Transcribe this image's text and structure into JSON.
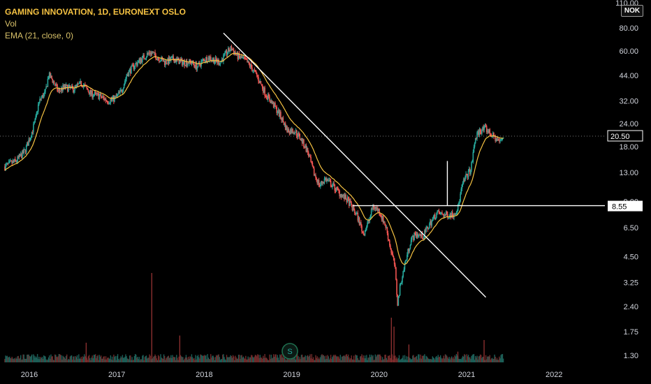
{
  "legend": {
    "title": "GAMING INNOVATION, 1D, EURONEXT OSLO",
    "volume_label": "Vol",
    "ema_label": "EMA (21, close, 0)"
  },
  "currency_badge": "NOK",
  "price_marker_label": "S",
  "colors": {
    "background": "#000000",
    "up": "#26a69a",
    "down": "#ef5350",
    "ema": "#f5c242",
    "trendline": "#ffffff",
    "axis_text": "#d1d4dc"
  },
  "chart_data": {
    "type": "candlestick",
    "scale": "log",
    "title": "GAMING INNOVATION, 1D, EURONEXT OSLO",
    "y_ticks": [
      "1.30",
      "1.75",
      "2.40",
      "3.25",
      "4.50",
      "6.50",
      "9.00",
      "13.00",
      "18.00",
      "24.00",
      "32.00",
      "44.00",
      "60.00",
      "80.00",
      "110.00"
    ],
    "x_ticks": [
      "2016",
      "2017",
      "2018",
      "2019",
      "2020",
      "2021",
      "2022"
    ],
    "x_range": [
      2015.7,
      2022.6
    ],
    "y_range": [
      1.1,
      115
    ],
    "last_price": 20.5,
    "last_price_label": "20.50",
    "horizontal_level": 8.55,
    "horizontal_level_label": "8.55",
    "price_series": [
      [
        2015.72,
        14.0
      ],
      [
        2015.85,
        15.0
      ],
      [
        2015.95,
        17.0
      ],
      [
        2016.02,
        21.0
      ],
      [
        2016.07,
        25.0
      ],
      [
        2016.1,
        30.0
      ],
      [
        2016.13,
        33.0
      ],
      [
        2016.18,
        35.0
      ],
      [
        2016.22,
        44.0
      ],
      [
        2016.26,
        42.0
      ],
      [
        2016.33,
        36.0
      ],
      [
        2016.4,
        38.0
      ],
      [
        2016.5,
        37.0
      ],
      [
        2016.6,
        40.0
      ],
      [
        2016.7,
        35.0
      ],
      [
        2016.8,
        34.0
      ],
      [
        2016.9,
        32.0
      ],
      [
        2016.98,
        33.0
      ],
      [
        2017.05,
        36.0
      ],
      [
        2017.12,
        45.0
      ],
      [
        2017.2,
        50.0
      ],
      [
        2017.3,
        55.0
      ],
      [
        2017.38,
        59.0
      ],
      [
        2017.45,
        56.0
      ],
      [
        2017.55,
        52.0
      ],
      [
        2017.65,
        54.0
      ],
      [
        2017.75,
        52.0
      ],
      [
        2017.85,
        52.0
      ],
      [
        2017.92,
        49.0
      ],
      [
        2018.0,
        54.0
      ],
      [
        2018.07,
        55.0
      ],
      [
        2018.12,
        53.0
      ],
      [
        2018.18,
        52.0
      ],
      [
        2018.25,
        58.0
      ],
      [
        2018.31,
        62.0
      ],
      [
        2018.38,
        56.0
      ],
      [
        2018.45,
        54.0
      ],
      [
        2018.52,
        50.0
      ],
      [
        2018.6,
        44.0
      ],
      [
        2018.7,
        35.0
      ],
      [
        2018.8,
        30.0
      ],
      [
        2018.88,
        26.0
      ],
      [
        2018.95,
        22.0
      ],
      [
        2019.03,
        22.0
      ],
      [
        2019.1,
        20.0
      ],
      [
        2019.18,
        17.0
      ],
      [
        2019.25,
        13.0
      ],
      [
        2019.32,
        11.0
      ],
      [
        2019.38,
        12.0
      ],
      [
        2019.47,
        11.0
      ],
      [
        2019.55,
        10.0
      ],
      [
        2019.65,
        9.0
      ],
      [
        2019.75,
        7.5
      ],
      [
        2019.82,
        6.0
      ],
      [
        2019.88,
        7.0
      ],
      [
        2019.93,
        8.5
      ],
      [
        2020.0,
        8.0
      ],
      [
        2020.08,
        6.5
      ],
      [
        2020.13,
        5.0
      ],
      [
        2020.18,
        4.0
      ],
      [
        2020.21,
        2.5
      ],
      [
        2020.25,
        3.3
      ],
      [
        2020.3,
        4.2
      ],
      [
        2020.36,
        5.5
      ],
      [
        2020.42,
        6.0
      ],
      [
        2020.5,
        5.8
      ],
      [
        2020.58,
        6.8
      ],
      [
        2020.66,
        7.8
      ],
      [
        2020.75,
        7.6
      ],
      [
        2020.85,
        7.7
      ],
      [
        2020.9,
        8.3
      ],
      [
        2020.95,
        11.0
      ],
      [
        2021.0,
        12.5
      ],
      [
        2021.05,
        13.5
      ],
      [
        2021.1,
        20.0
      ],
      [
        2021.15,
        22.0
      ],
      [
        2021.22,
        22.5
      ],
      [
        2021.3,
        20.5
      ],
      [
        2021.38,
        19.0
      ],
      [
        2021.42,
        20.5
      ]
    ],
    "trendline": [
      [
        2018.22,
        75.0
      ],
      [
        2021.22,
        2.7
      ]
    ],
    "vertical_marker": {
      "x": 2020.78,
      "from": 8.55,
      "to": 15.0
    },
    "volume_spikes": [
      [
        2016.65,
        0.22
      ],
      [
        2017.4,
        1.0
      ],
      [
        2017.72,
        0.3
      ],
      [
        2020.14,
        0.5
      ],
      [
        2020.17,
        0.4
      ],
      [
        2020.34,
        0.2
      ],
      [
        2020.9,
        0.12
      ],
      [
        2021.2,
        0.25
      ]
    ]
  }
}
